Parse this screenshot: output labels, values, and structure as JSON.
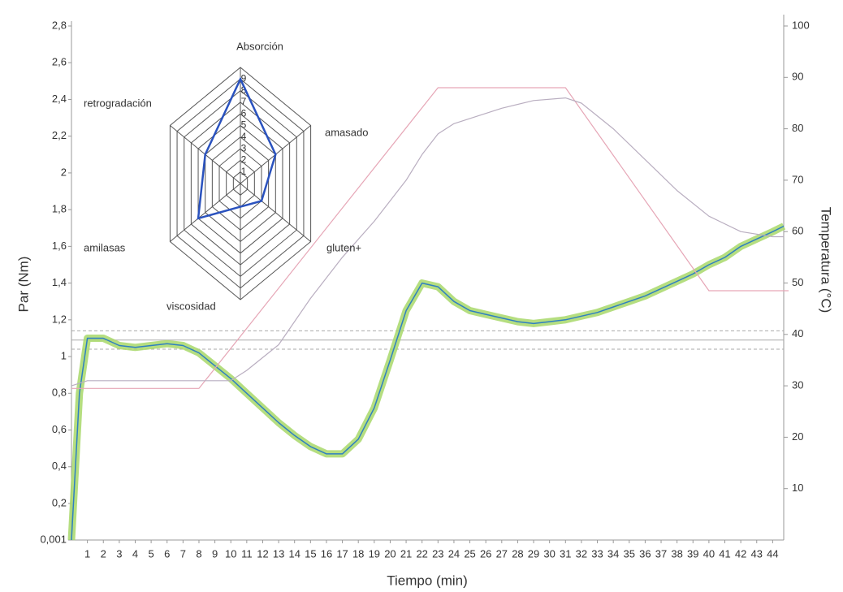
{
  "chart_data": [
    {
      "type": "line",
      "y_label": "Par (Nm)",
      "y2_label": "Temperatura (°C)",
      "x_label": "Tiempo (min)",
      "xlim": [
        0,
        45
      ],
      "xticks": [
        1,
        2,
        3,
        4,
        5,
        6,
        7,
        8,
        9,
        10,
        11,
        12,
        13,
        14,
        15,
        16,
        17,
        18,
        19,
        20,
        21,
        22,
        23,
        24,
        25,
        26,
        27,
        28,
        29,
        30,
        31,
        32,
        33,
        34,
        35,
        36,
        37,
        38,
        39,
        40,
        41,
        42,
        43,
        44
      ],
      "ylim": [
        0.001,
        2.8
      ],
      "yticks": [
        {
          "value": 0.001,
          "label": "0,001"
        },
        {
          "value": 0.2,
          "label": "0,2"
        },
        {
          "value": 0.4,
          "label": "0,4"
        },
        {
          "value": 0.6,
          "label": "0,6"
        },
        {
          "value": 0.8,
          "label": "0,8"
        },
        1,
        {
          "value": 1.2,
          "label": "1,2"
        },
        {
          "value": 1.4,
          "label": "1,4"
        },
        {
          "value": 1.6,
          "label": "1,6"
        },
        {
          "value": 1.8,
          "label": "1,8"
        },
        2,
        {
          "value": 2.2,
          "label": "2,2"
        },
        {
          "value": 2.4,
          "label": "2,4"
        },
        {
          "value": 2.6,
          "label": "2,6"
        },
        {
          "value": 2.8,
          "label": "2,8"
        }
      ],
      "y2lim": [
        0,
        100
      ],
      "y2ticks": [
        10,
        20,
        30,
        40,
        50,
        60,
        70,
        80,
        90,
        100
      ],
      "hlines": [
        1.14,
        1.09,
        1.04
      ],
      "hline_dashed": [
        true,
        false,
        true
      ],
      "hline_color": "#aaaaaa",
      "series": [
        {
          "color": "#2f7fc1",
          "band_color": "#a8d86a",
          "axis": "y",
          "x": [
            0,
            0.5,
            1,
            2,
            3,
            4,
            5,
            6,
            7,
            8,
            9,
            10,
            11,
            12,
            13,
            14,
            15,
            16,
            17,
            18,
            19,
            20,
            21,
            22,
            23,
            24,
            25,
            26,
            27,
            28,
            29,
            30,
            31,
            32,
            33,
            34,
            35,
            36,
            37,
            38,
            39,
            40,
            41,
            42,
            43,
            44,
            44.7
          ],
          "values": [
            0.001,
            0.8,
            1.1,
            1.1,
            1.06,
            1.05,
            1.06,
            1.07,
            1.06,
            1.02,
            0.95,
            0.88,
            0.8,
            0.72,
            0.64,
            0.57,
            0.51,
            0.47,
            0.47,
            0.55,
            0.72,
            0.98,
            1.25,
            1.4,
            1.38,
            1.3,
            1.25,
            1.23,
            1.21,
            1.19,
            1.18,
            1.19,
            1.2,
            1.22,
            1.24,
            1.27,
            1.3,
            1.33,
            1.37,
            1.41,
            1.45,
            1.5,
            1.54,
            1.6,
            1.64,
            1.68,
            1.71
          ]
        },
        {
          "color": "#e6a6b6",
          "axis": "y2",
          "x": [
            0,
            8,
            23,
            31,
            40,
            45
          ],
          "values": [
            29.5,
            29.5,
            88,
            88,
            48.5,
            48.5
          ]
        },
        {
          "color": "#b9aec0",
          "axis": "y2",
          "x": [
            0,
            1,
            10,
            11,
            13,
            15,
            17,
            19,
            21,
            22,
            23,
            24,
            25,
            27,
            29,
            31,
            32,
            34,
            36,
            38,
            40,
            42,
            44,
            44.7
          ],
          "values": [
            30,
            31,
            31,
            33,
            38,
            47,
            55,
            62,
            70,
            75,
            79,
            81,
            82,
            84,
            85.5,
            86,
            85,
            80,
            74,
            68,
            63,
            60,
            59,
            59
          ]
        }
      ]
    },
    {
      "type": "radar",
      "axes": [
        "Absorción",
        "amasado",
        "gluten+",
        "viscosidad",
        "amilasas",
        "retrogradación"
      ],
      "values": [
        9,
        5,
        3,
        2,
        6,
        5
      ],
      "color": "#2a52be",
      "rlim": [
        0,
        10
      ],
      "rticks": [
        1,
        2,
        3,
        4,
        5,
        6,
        7,
        8,
        9
      ]
    }
  ]
}
